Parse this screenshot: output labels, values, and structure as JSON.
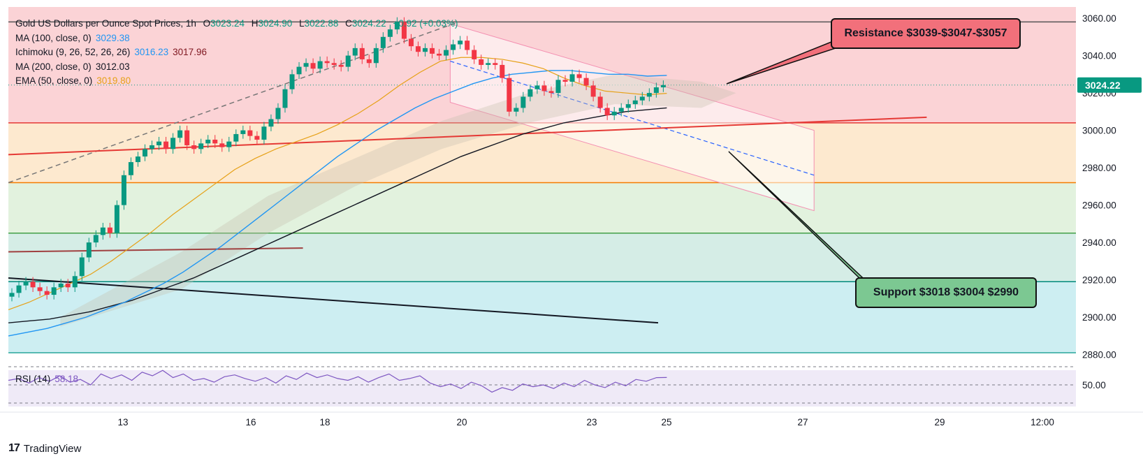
{
  "chart_data": {
    "type": "candlestick",
    "title": "Gold US Dollars per Ounce Spot Prices, 1h",
    "ohlc": {
      "o_label": "O",
      "o": "3023.24",
      "h_label": "H",
      "h": "3024.90",
      "l_label": "L",
      "l": "3022.88",
      "c_label": "C",
      "c": "3024.22",
      "change": "+0.92 (+0.03%)"
    },
    "indicators": [
      {
        "name": "MA (100, close, 0)",
        "value": "3029.38",
        "color": "#2196f3"
      },
      {
        "name": "Ichimoku (9, 26, 52, 26, 26)",
        "value": "3016.23",
        "value2": "3017.96",
        "color": "#2196f3",
        "color2": "#801922"
      },
      {
        "name": "MA (200, close, 0)",
        "value": "3012.03",
        "color": "#131722"
      },
      {
        "name": "EMA (50, close, 0)",
        "value": "3019.80",
        "color": "#e6a117"
      }
    ],
    "y_axis": {
      "ticks": [
        "3060.00",
        "3040.00",
        "3020.00",
        "3000.00",
        "2980.00",
        "2960.00",
        "2940.00",
        "2920.00",
        "2900.00",
        "2880.00"
      ],
      "ylim": [
        2878,
        3066
      ]
    },
    "x_axis": {
      "ticks": [
        "13",
        "16",
        "18",
        "20",
        "23",
        "25",
        "27",
        "29",
        "12:00"
      ]
    },
    "last_price": "3024.22",
    "close_series": [
      2913,
      2917,
      2919,
      2916,
      2914,
      2912,
      2916,
      2918,
      2916,
      2922,
      2932,
      2940,
      2944,
      2948,
      2945,
      2960,
      2976,
      2983,
      2986,
      2990,
      2992,
      2994,
      2990,
      2996,
      3000,
      2992,
      2990,
      2993,
      2995,
      2993,
      2991,
      2994,
      2998,
      3000,
      2997,
      2995,
      3002,
      3006,
      3012,
      3022,
      3030,
      3034,
      3036,
      3033,
      3037,
      3036,
      3035,
      3034,
      3040,
      3044,
      3038,
      3036,
      3044,
      3050,
      3054,
      3058,
      3049,
      3045,
      3042,
      3044,
      3041,
      3040,
      3043,
      3046,
      3048,
      3043,
      3038,
      3035,
      3036,
      3035,
      3028,
      3010,
      3012,
      3018,
      3022,
      3024,
      3021,
      3020,
      3027,
      3026,
      3030,
      3028,
      3024,
      3018,
      3012,
      3008,
      3010,
      3012,
      3014,
      3016,
      3018,
      3020,
      3023,
      3024.22
    ],
    "ma100_series": [
      2890,
      2892,
      2894,
      2897,
      2900,
      2904,
      2908,
      2913,
      2918,
      2924,
      2931,
      2938,
      2946,
      2954,
      2962,
      2970,
      2978,
      2986,
      2993,
      3000,
      3006,
      3012,
      3017,
      3021,
      3025,
      3028,
      3030,
      3031,
      3032,
      3032,
      3031,
      3030,
      3030,
      3029,
      3029.38
    ],
    "ma200_series": [
      2897,
      2898,
      2899,
      2901,
      2903,
      2906,
      2909,
      2913,
      2917,
      2921,
      2926,
      2931,
      2936,
      2941,
      2946,
      2951,
      2956,
      2961,
      2966,
      2971,
      2976,
      2981,
      2986,
      2990,
      2994,
      2998,
      3001,
      3004,
      3006,
      3008,
      3010,
      3011,
      3012.03
    ],
    "ema50_series": [
      2904,
      2908,
      2913,
      2918,
      2923,
      2930,
      2938,
      2946,
      2955,
      2963,
      2971,
      2979,
      2985,
      2990,
      2994,
      2998,
      3003,
      3009,
      3016,
      3024,
      3031,
      3037,
      3039,
      3039,
      3038,
      3036,
      3033,
      3028,
      3024,
      3021,
      3020,
      3019,
      3019.8
    ],
    "rsi": {
      "label": "RSI (14)",
      "value": "58.18",
      "ticks": [
        "50.00"
      ],
      "levels": [
        70,
        50,
        30
      ],
      "series": [
        55,
        57,
        52,
        58,
        54,
        60,
        53,
        56,
        50,
        62,
        57,
        61,
        55,
        64,
        60,
        66,
        58,
        62,
        55,
        57,
        53,
        59,
        61,
        57,
        54,
        58,
        52,
        60,
        56,
        63,
        58,
        61,
        57,
        55,
        59,
        53,
        58,
        62,
        55,
        57,
        60,
        52,
        48,
        51,
        46,
        53,
        49,
        42,
        47,
        44,
        51,
        48,
        50,
        46,
        52,
        48,
        55,
        50,
        47,
        53,
        49,
        56,
        54,
        58,
        58.18
      ]
    },
    "horizontal_levels": [
      3058,
      3004,
      2972,
      2945,
      2919,
      2881
    ]
  },
  "annotations": {
    "resistance": "Resistance $3039-$3047-$3057",
    "support": "Support $3018 $3004 $2990"
  },
  "colors": {
    "up": "#089981",
    "down": "#f23645",
    "resistance": "#f2707b",
    "support": "#7cc892"
  },
  "footer": {
    "brand": "TradingView",
    "logo": "17"
  }
}
